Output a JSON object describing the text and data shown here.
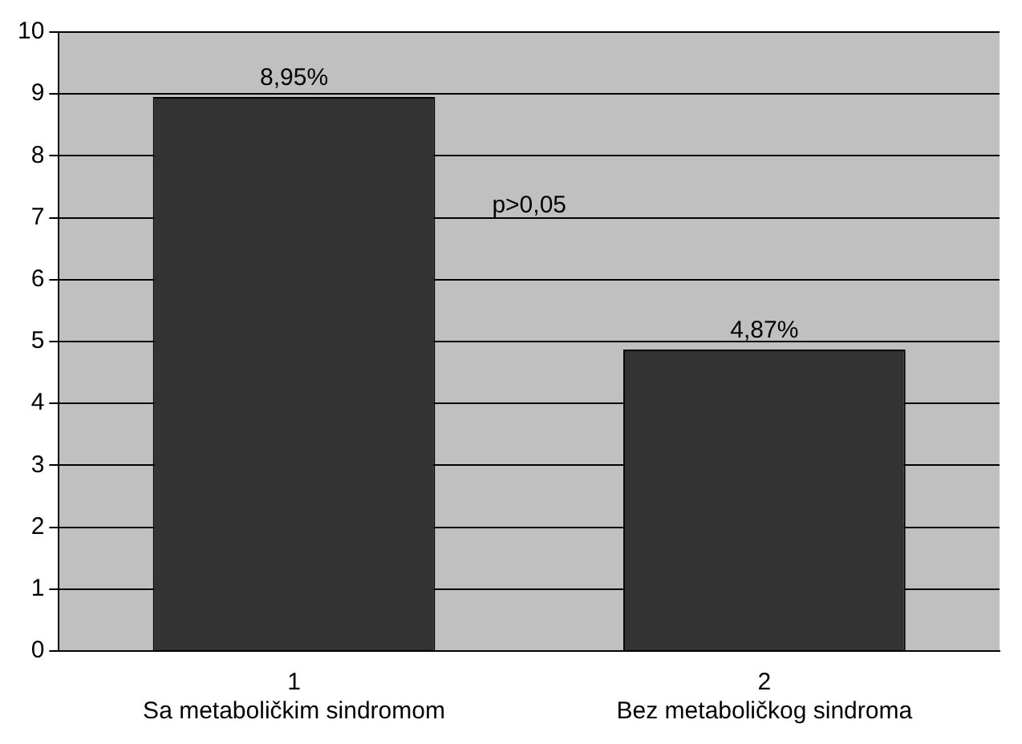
{
  "chart_data": {
    "type": "bar",
    "categories": [
      "1\nSa metaboličkim sindromom",
      "2\nBez metaboličkog sindroma"
    ],
    "values": [
      8.95,
      4.87
    ],
    "value_labels": [
      "8,95%",
      "4,87%"
    ],
    "color": "#333333",
    "ylim": [
      0,
      10
    ],
    "yticks": [
      0,
      1,
      2,
      3,
      4,
      5,
      6,
      7,
      8,
      9,
      10
    ],
    "grid": "y",
    "annotations": [
      "p>0,05"
    ]
  }
}
